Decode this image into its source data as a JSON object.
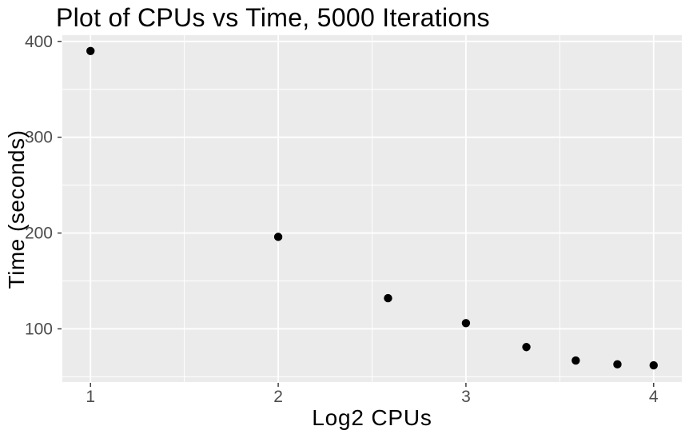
{
  "chart_data": {
    "type": "scatter",
    "title": "Plot of CPUs vs Time, 5000 Iterations",
    "xlabel": "Log2 CPUs",
    "ylabel": "Time (seconds)",
    "points": [
      {
        "x": 1.0,
        "y": 390
      },
      {
        "x": 2.0,
        "y": 196
      },
      {
        "x": 2.585,
        "y": 132
      },
      {
        "x": 3.0,
        "y": 106
      },
      {
        "x": 3.322,
        "y": 81
      },
      {
        "x": 3.585,
        "y": 67
      },
      {
        "x": 3.807,
        "y": 63
      },
      {
        "x": 4.0,
        "y": 62
      }
    ],
    "xlim": [
      0.85,
      4.15
    ],
    "ylim": [
      44.5,
      406.5
    ],
    "x_ticks": [
      1,
      2,
      3,
      4
    ],
    "y_ticks": [
      100,
      200,
      300,
      400
    ],
    "x_minor_ticks": [
      1.5,
      2.5,
      3.5
    ],
    "y_minor_ticks": [
      50,
      150,
      250,
      350
    ],
    "grid": true,
    "legend_position": "none",
    "style": {
      "panel_background": "#EBEBEB",
      "gridline_color": "#FFFFFF",
      "point_color": "#000000",
      "tick_label_color": "#4D4D4D",
      "tick_mark_color": "#333333",
      "title_color": "#000000",
      "axis_title_color": "#000000"
    }
  }
}
